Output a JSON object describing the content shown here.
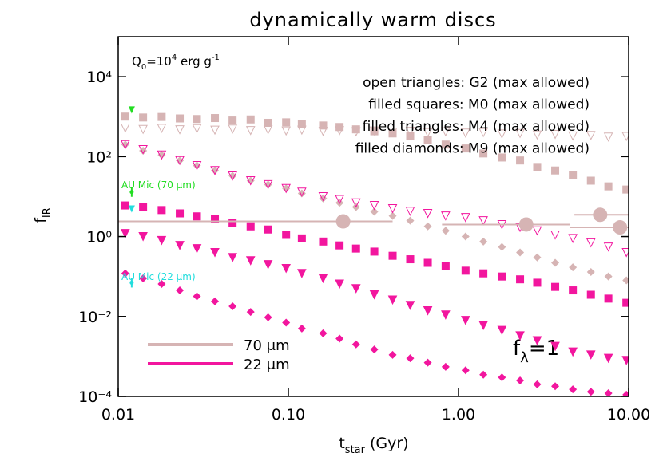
{
  "chart_data": {
    "type": "scatter",
    "title": "dynamically warm discs",
    "xlabel": [
      "t",
      "star",
      " (Gyr)"
    ],
    "ylabel": [
      "f",
      "IR"
    ],
    "xlog": true,
    "ylog": true,
    "xlim": [
      0.01,
      10
    ],
    "ylim": [
      0.0001,
      100000
    ],
    "xticks": [
      0.01,
      {
        "value": 0.1,
        "label": "0.10"
      },
      {
        "value": 1,
        "label": "1.00"
      },
      {
        "value": 10,
        "label": "10.00"
      }
    ],
    "yticks": [
      {
        "value": 0.0001,
        "label": "10⁻⁴"
      },
      {
        "value": 0.01,
        "label": "10⁻²"
      },
      {
        "value": 1,
        "label": "10⁰"
      },
      {
        "value": 100,
        "label": "10²"
      },
      {
        "value": 10000,
        "label": "10⁴"
      }
    ],
    "q_label": [
      "Q",
      "0",
      "=10",
      "4",
      " erg g",
      "-1"
    ],
    "f_label": [
      "f",
      "λ",
      "=1"
    ],
    "symbols": [
      "open triangles: G2 (max allowed)",
      "filled squares: M0 (max allowed)",
      "filled triangles: M4 (max allowed)",
      "filled diamonds: M9 (max allowed)"
    ],
    "wavelengths": [
      {
        "name": "70 μm",
        "color": "#d6b4b4"
      },
      {
        "name": "22 μm",
        "color": "#f2169e"
      }
    ],
    "x": [
      0.011,
      0.014,
      0.018,
      0.023,
      0.029,
      0.037,
      0.047,
      0.06,
      0.076,
      0.097,
      0.12,
      0.16,
      0.2,
      0.25,
      0.32,
      0.41,
      0.52,
      0.66,
      0.84,
      1.1,
      1.4,
      1.8,
      2.3,
      2.9,
      3.7,
      4.7,
      6.0,
      7.6,
      9.7
    ],
    "series": [
      {
        "marker": "open-triangle",
        "color": "#d6b4b4",
        "values": [
          520,
          480,
          510,
          470,
          500,
          460,
          490,
          450,
          470,
          440,
          460,
          430,
          450,
          420,
          440,
          410,
          430,
          400,
          420,
          390,
          400,
          370,
          380,
          350,
          360,
          330,
          340,
          310,
          320
        ]
      },
      {
        "marker": "square",
        "color": "#d6b4b4",
        "values": [
          1000,
          950,
          980,
          900,
          870,
          920,
          800,
          850,
          700,
          720,
          650,
          600,
          550,
          480,
          430,
          380,
          320,
          260,
          200,
          160,
          120,
          95,
          80,
          55,
          45,
          35,
          25,
          18,
          15
        ]
      },
      {
        "marker": "diamond",
        "color": "#d6b4b4",
        "values": [
          200,
          140,
          110,
          80,
          60,
          45,
          33,
          25,
          20,
          16,
          12,
          9,
          7,
          5.5,
          4.2,
          3.3,
          2.5,
          1.8,
          1.4,
          1.0,
          0.75,
          0.55,
          0.4,
          0.3,
          0.22,
          0.17,
          0.13,
          0.1,
          0.08
        ]
      },
      {
        "marker": "open-triangle",
        "color": "#f2169e",
        "values": [
          200,
          150,
          110,
          80,
          60,
          45,
          33,
          25,
          20,
          16,
          13,
          10,
          8.5,
          7,
          6,
          5,
          4.3,
          3.8,
          3.3,
          3,
          2.5,
          2,
          1.7,
          1.4,
          1.1,
          0.9,
          0.7,
          0.55,
          0.4
        ]
      },
      {
        "marker": "square",
        "color": "#f2169e",
        "values": [
          6,
          5.5,
          4.6,
          3.8,
          3.2,
          2.7,
          2.2,
          1.8,
          1.5,
          1.1,
          0.9,
          0.75,
          0.6,
          0.5,
          0.42,
          0.33,
          0.27,
          0.22,
          0.18,
          0.14,
          0.12,
          0.1,
          0.085,
          0.07,
          0.055,
          0.045,
          0.035,
          0.028,
          0.022
        ]
      },
      {
        "marker": "triangle",
        "color": "#f2169e",
        "values": [
          1.2,
          1.0,
          0.8,
          0.6,
          0.5,
          0.4,
          0.3,
          0.25,
          0.2,
          0.16,
          0.12,
          0.09,
          0.065,
          0.05,
          0.035,
          0.026,
          0.019,
          0.014,
          0.011,
          0.008,
          0.006,
          0.0045,
          0.0033,
          0.0025,
          0.0018,
          0.0013,
          0.0011,
          0.0009,
          0.0008
        ]
      },
      {
        "marker": "diamond",
        "color": "#f2169e",
        "values": [
          0.12,
          0.09,
          0.065,
          0.045,
          0.032,
          0.024,
          0.018,
          0.013,
          0.0095,
          0.007,
          0.005,
          0.0038,
          0.0028,
          0.002,
          0.0015,
          0.0011,
          0.0009,
          0.0007,
          0.00055,
          0.00045,
          0.00035,
          0.0003,
          0.00025,
          0.0002,
          0.00018,
          0.00015,
          0.00013,
          0.00012,
          0.00011
        ]
      }
    ],
    "observations": {
      "color": "#d6b4b4",
      "x": [
        0.21,
        2.5,
        6.8,
        8.9
      ],
      "xlow": [
        0.01,
        0.8,
        4.8,
        4.5
      ],
      "xhigh": [
        0.41,
        4.5,
        10,
        10
      ],
      "values": [
        2.4,
        2.0,
        3.5,
        1.7
      ]
    },
    "au_mic": [
      {
        "name": "AU Mic (70 μm)",
        "color": "#22dd22",
        "x": [
          0.012,
          0.012
        ],
        "values": [
          1500,
          13
        ]
      },
      {
        "name": "AU Mic (22 μm)",
        "color": "#22dddd",
        "x": [
          0.012,
          0.012
        ],
        "values": [
          5,
          0.07
        ]
      }
    ]
  }
}
